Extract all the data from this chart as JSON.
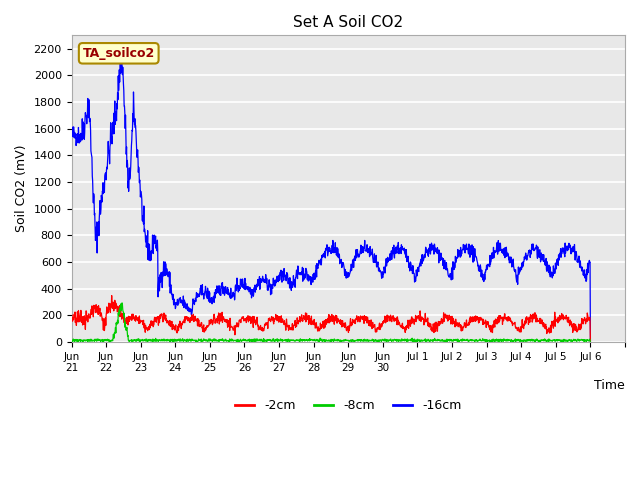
{
  "title": "Set A Soil CO2",
  "ylabel": "Soil CO2 (mV)",
  "xlabel": "Time",
  "legend_label": "TA_soilco2",
  "series_labels": [
    "-2cm",
    "-8cm",
    "-16cm"
  ],
  "series_colors": [
    "#ff0000",
    "#00cc00",
    "#0000ff"
  ],
  "ylim": [
    0,
    2300
  ],
  "background_color": "#ffffff",
  "plot_bg_color": "#e8e8e8",
  "grid_color": "#ffffff",
  "annotation_bg": "#ffffcc",
  "annotation_text_color": "#990000",
  "annotation_border_color": "#aa8800",
  "tick_positions": [
    0,
    1,
    2,
    3,
    4,
    5,
    6,
    7,
    8,
    9,
    10,
    11,
    12,
    13,
    14,
    15,
    16
  ],
  "tick_labels": [
    "Jun\n21",
    "Jun\n22",
    "Jun\n23",
    "Jun\n24",
    "Jun\n25",
    "Jun\n26",
    "Jun\n27",
    "Jun\n28",
    "Jun\n29",
    "Jun\n30",
    "Jul 1",
    "Jul 2",
    "Jul 3",
    "Jul 4",
    "Jul 5",
    "Jul 6",
    ""
  ],
  "xlim": [
    0,
    16
  ],
  "figsize": [
    6.4,
    4.8
  ],
  "dpi": 100
}
